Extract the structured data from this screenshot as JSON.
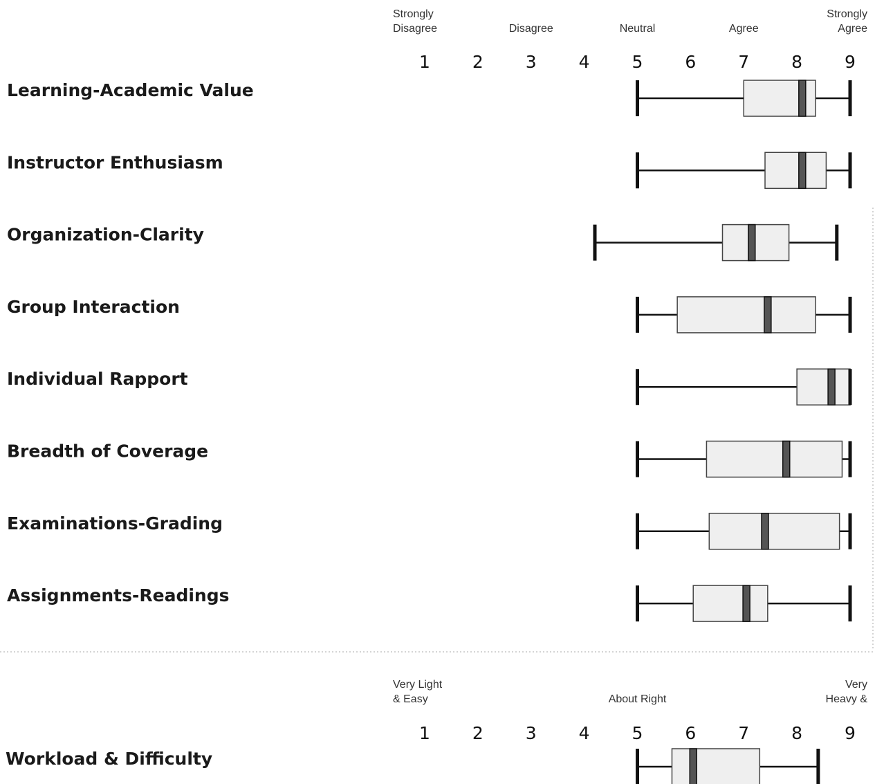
{
  "chart_data": [
    {
      "type": "box",
      "scale_ticks": [
        "1",
        "2",
        "3",
        "4",
        "5",
        "6",
        "7",
        "8",
        "9"
      ],
      "scale_anchors": [
        {
          "text": [
            "Strongly",
            "Disagree"
          ],
          "at": 1
        },
        {
          "text": [
            "Disagree"
          ],
          "at": 3
        },
        {
          "text": [
            "Neutral"
          ],
          "at": 5
        },
        {
          "text": [
            "Agree"
          ],
          "at": 7
        },
        {
          "text": [
            "Strongly",
            "Agree"
          ],
          "at": 9
        }
      ],
      "xlim": [
        1,
        9
      ],
      "rows": [
        {
          "label": "Learning-Academic Value",
          "min": 5,
          "q1": 7,
          "median": 8.1,
          "q3": 8.35,
          "max": 9
        },
        {
          "label": "Instructor Enthusiasm",
          "min": 5,
          "q1": 7.4,
          "median": 8.1,
          "q3": 8.55,
          "max": 9
        },
        {
          "label": "Organization-Clarity",
          "min": 4.2,
          "q1": 6.6,
          "median": 7.15,
          "q3": 7.85,
          "max": 8.75
        },
        {
          "label": "Group Interaction",
          "min": 5,
          "q1": 5.75,
          "median": 7.45,
          "q3": 8.35,
          "max": 9
        },
        {
          "label": "Individual Rapport",
          "min": 5,
          "q1": 8,
          "median": 8.65,
          "q3": 9,
          "max": 9
        },
        {
          "label": "Breadth of Coverage",
          "min": 5,
          "q1": 6.3,
          "median": 7.8,
          "q3": 8.85,
          "max": 9
        },
        {
          "label": "Examinations-Grading",
          "min": 5,
          "q1": 6.35,
          "median": 7.4,
          "q3": 8.8,
          "max": 9
        },
        {
          "label": "Assignments-Readings",
          "min": 5,
          "q1": 6.05,
          "median": 7.05,
          "q3": 7.45,
          "max": 9
        }
      ]
    },
    {
      "type": "box",
      "scale_ticks": [
        "1",
        "2",
        "3",
        "4",
        "5",
        "6",
        "7",
        "8",
        "9"
      ],
      "scale_anchors": [
        {
          "text": [
            "Very Light",
            "& Easy"
          ],
          "at": 1
        },
        {
          "text": [
            "About Right"
          ],
          "at": 5
        },
        {
          "text": [
            "Very",
            "Heavy &"
          ],
          "at": 9
        }
      ],
      "xlim": [
        1,
        9
      ],
      "rows": [
        {
          "label": "Workload & Difficulty",
          "min": 5,
          "q1": 5.65,
          "median": 6.05,
          "q3": 7.3,
          "max": 8.4
        }
      ]
    }
  ]
}
